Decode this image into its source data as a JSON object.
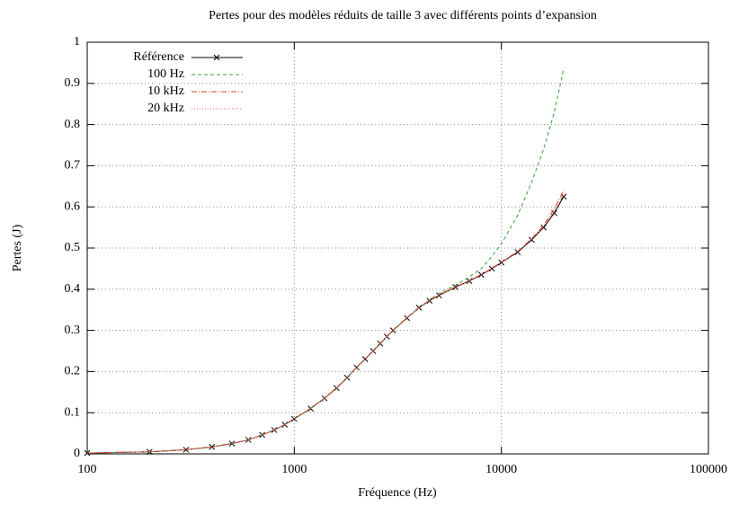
{
  "chart_data": {
    "type": "line",
    "title": "Pertes pour des modèles réduits de taille 3 avec différents points d’expansion",
    "xlabel": "Fréquence (Hz)",
    "ylabel": "Pertes (J)",
    "xscale": "log",
    "grid": true,
    "legend": "upper left",
    "x": [
      100,
      200,
      300,
      400,
      500,
      600,
      700,
      800,
      900,
      1000,
      1200,
      1400,
      1600,
      1800,
      2000,
      2200,
      2400,
      2600,
      2800,
      3000,
      3500,
      4000,
      4500,
      5000,
      6000,
      7000,
      8000,
      9000,
      10000,
      12000,
      14000,
      16000,
      18000,
      20000
    ],
    "series": [
      {
        "name": "Référence",
        "color": "#000000",
        "dash": "solid",
        "marker": "x",
        "values": [
          0.002,
          0.005,
          0.01,
          0.017,
          0.025,
          0.034,
          0.046,
          0.058,
          0.071,
          0.085,
          0.11,
          0.135,
          0.16,
          0.185,
          0.21,
          0.23,
          0.25,
          0.268,
          0.285,
          0.3,
          0.33,
          0.355,
          0.372,
          0.385,
          0.405,
          0.42,
          0.435,
          0.45,
          0.465,
          0.49,
          0.52,
          0.55,
          0.585,
          0.625
        ]
      },
      {
        "name": "100 Hz",
        "color": "#3aa03a",
        "dash": "dashed",
        "values": [
          0.002,
          0.005,
          0.01,
          0.017,
          0.025,
          0.034,
          0.046,
          0.058,
          0.071,
          0.085,
          0.11,
          0.135,
          0.16,
          0.185,
          0.21,
          0.23,
          0.25,
          0.268,
          0.285,
          0.3,
          0.33,
          0.355,
          0.374,
          0.39,
          0.41,
          0.43,
          0.45,
          0.48,
          0.51,
          0.58,
          0.66,
          0.74,
          0.83,
          0.935
        ]
      },
      {
        "name": "10 kHz",
        "color": "#e8401c",
        "dash": "dashdot",
        "values": [
          0.002,
          0.005,
          0.01,
          0.017,
          0.025,
          0.034,
          0.046,
          0.058,
          0.071,
          0.086,
          0.111,
          0.136,
          0.161,
          0.186,
          0.211,
          0.231,
          0.251,
          0.269,
          0.286,
          0.301,
          0.331,
          0.356,
          0.373,
          0.386,
          0.406,
          0.421,
          0.436,
          0.451,
          0.466,
          0.492,
          0.523,
          0.555,
          0.595,
          0.64
        ]
      },
      {
        "name": "20 kHz",
        "color": "#e06a8a",
        "dash": "dotted",
        "values": [
          0.002,
          0.005,
          0.01,
          0.017,
          0.025,
          0.034,
          0.046,
          0.058,
          0.071,
          0.085,
          0.11,
          0.135,
          0.16,
          0.185,
          0.21,
          0.23,
          0.25,
          0.268,
          0.285,
          0.3,
          0.33,
          0.355,
          0.372,
          0.385,
          0.405,
          0.42,
          0.435,
          0.45,
          0.465,
          0.491,
          0.521,
          0.552,
          0.589,
          0.63
        ]
      }
    ],
    "xlim": [
      100,
      100000
    ],
    "xticks": [
      100,
      1000,
      10000,
      100000
    ],
    "ylim": [
      0,
      1
    ],
    "yticks": [
      0,
      0.1,
      0.2,
      0.3,
      0.4,
      0.5,
      0.6,
      0.7,
      0.8,
      0.9,
      1
    ]
  }
}
